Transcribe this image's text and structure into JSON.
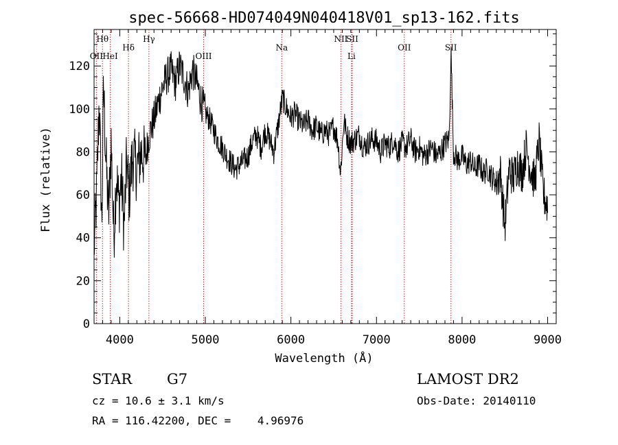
{
  "chart_data": {
    "type": "line",
    "title": "spec-56668-HD074049N040418V01_sp13-162.fits",
    "xlabel": "Wavelength (Å)",
    "ylabel": "Flux (relative)",
    "xlim": [
      3700,
      9100
    ],
    "ylim": [
      0,
      137
    ],
    "x_ticks": [
      4000,
      5000,
      6000,
      7000,
      8000,
      9000
    ],
    "y_ticks": [
      0,
      20,
      40,
      60,
      80,
      100,
      120
    ],
    "grid": false,
    "legend": "none",
    "line_color": "#000000",
    "marker_color": "#b03030",
    "series": [
      {
        "x": [
          3700,
          3730,
          3760,
          3790,
          3810,
          3840,
          3870,
          3900,
          3930,
          3960,
          3990,
          4020,
          4050,
          4080,
          4110,
          4150,
          4200,
          4250,
          4300,
          4330,
          4360,
          4400,
          4450,
          4500,
          4550,
          4600,
          4650,
          4700,
          4750,
          4800,
          4850,
          4900,
          4950,
          5000,
          5050,
          5100,
          5150,
          5200,
          5250,
          5300,
          5350,
          5400,
          5450,
          5500,
          5550,
          5600,
          5650,
          5700,
          5750,
          5800,
          5850,
          5900,
          5950,
          6000,
          6050,
          6100,
          6150,
          6200,
          6250,
          6300,
          6350,
          6400,
          6450,
          6500,
          6550,
          6580,
          6620,
          6650,
          6700,
          6750,
          6800,
          6850,
          6900,
          6950,
          7000,
          7050,
          7100,
          7150,
          7200,
          7250,
          7300,
          7350,
          7400,
          7450,
          7500,
          7550,
          7600,
          7650,
          7700,
          7750,
          7800,
          7850,
          7870,
          7900,
          7950,
          8000,
          8050,
          8100,
          8150,
          8200,
          8250,
          8300,
          8350,
          8400,
          8450,
          8500,
          8550,
          8600,
          8650,
          8700,
          8750,
          8800,
          8850,
          8900,
          8950,
          9000
        ],
        "y": [
          35,
          60,
          105,
          45,
          110,
          75,
          50,
          85,
          40,
          70,
          55,
          68,
          45,
          75,
          60,
          78,
          72,
          80,
          76,
          85,
          90,
          95,
          103,
          110,
          115,
          118,
          112,
          120,
          115,
          108,
          118,
          112,
          104,
          98,
          95,
          90,
          85,
          82,
          78,
          75,
          72,
          74,
          76,
          78,
          85,
          88,
          82,
          90,
          86,
          80,
          92,
          105,
          100,
          96,
          98,
          94,
          92,
          95,
          90,
          92,
          88,
          90,
          88,
          92,
          85,
          70,
          95,
          88,
          84,
          86,
          88,
          82,
          84,
          86,
          85,
          80,
          84,
          82,
          86,
          80,
          84,
          82,
          86,
          80,
          82,
          78,
          80,
          82,
          78,
          80,
          84,
          86,
          128,
          80,
          76,
          78,
          74,
          76,
          72,
          74,
          70,
          72,
          68,
          66,
          70,
          45,
          72,
          68,
          75,
          70,
          82,
          72,
          66,
          85,
          60,
          55
        ]
      }
    ],
    "lines": [
      {
        "label": "Hθ",
        "x": 3798,
        "row": 1
      },
      {
        "label": "OII",
        "x": 3727,
        "row": 2
      },
      {
        "label": "HeI",
        "x": 3889,
        "row": 2
      },
      {
        "label": "Hδ",
        "x": 4102,
        "row": 1.5
      },
      {
        "label": "Hγ",
        "x": 4341,
        "row": 1
      },
      {
        "label": "OIII",
        "x": 4980,
        "row": 2
      },
      {
        "label": "Na",
        "x": 5893,
        "row": 1.5
      },
      {
        "label": "NII",
        "x": 6584,
        "row": 1
      },
      {
        "label": "SII",
        "x": 6717,
        "row": 1
      },
      {
        "label": "Li",
        "x": 6708,
        "row": 2
      },
      {
        "label": "OII",
        "x": 7325,
        "row": 1.5
      },
      {
        "label": "SII",
        "x": 7870,
        "row": 1.5
      }
    ]
  },
  "footer": {
    "object_class": "STAR",
    "subclass": "G7",
    "survey": "LAMOST DR2",
    "redshift": "cz = 10.6 ± 3.1 km/s",
    "obs_date": "Obs-Date: 20140110",
    "coords": "RA = 116.42200, DEC =    4.96976"
  }
}
